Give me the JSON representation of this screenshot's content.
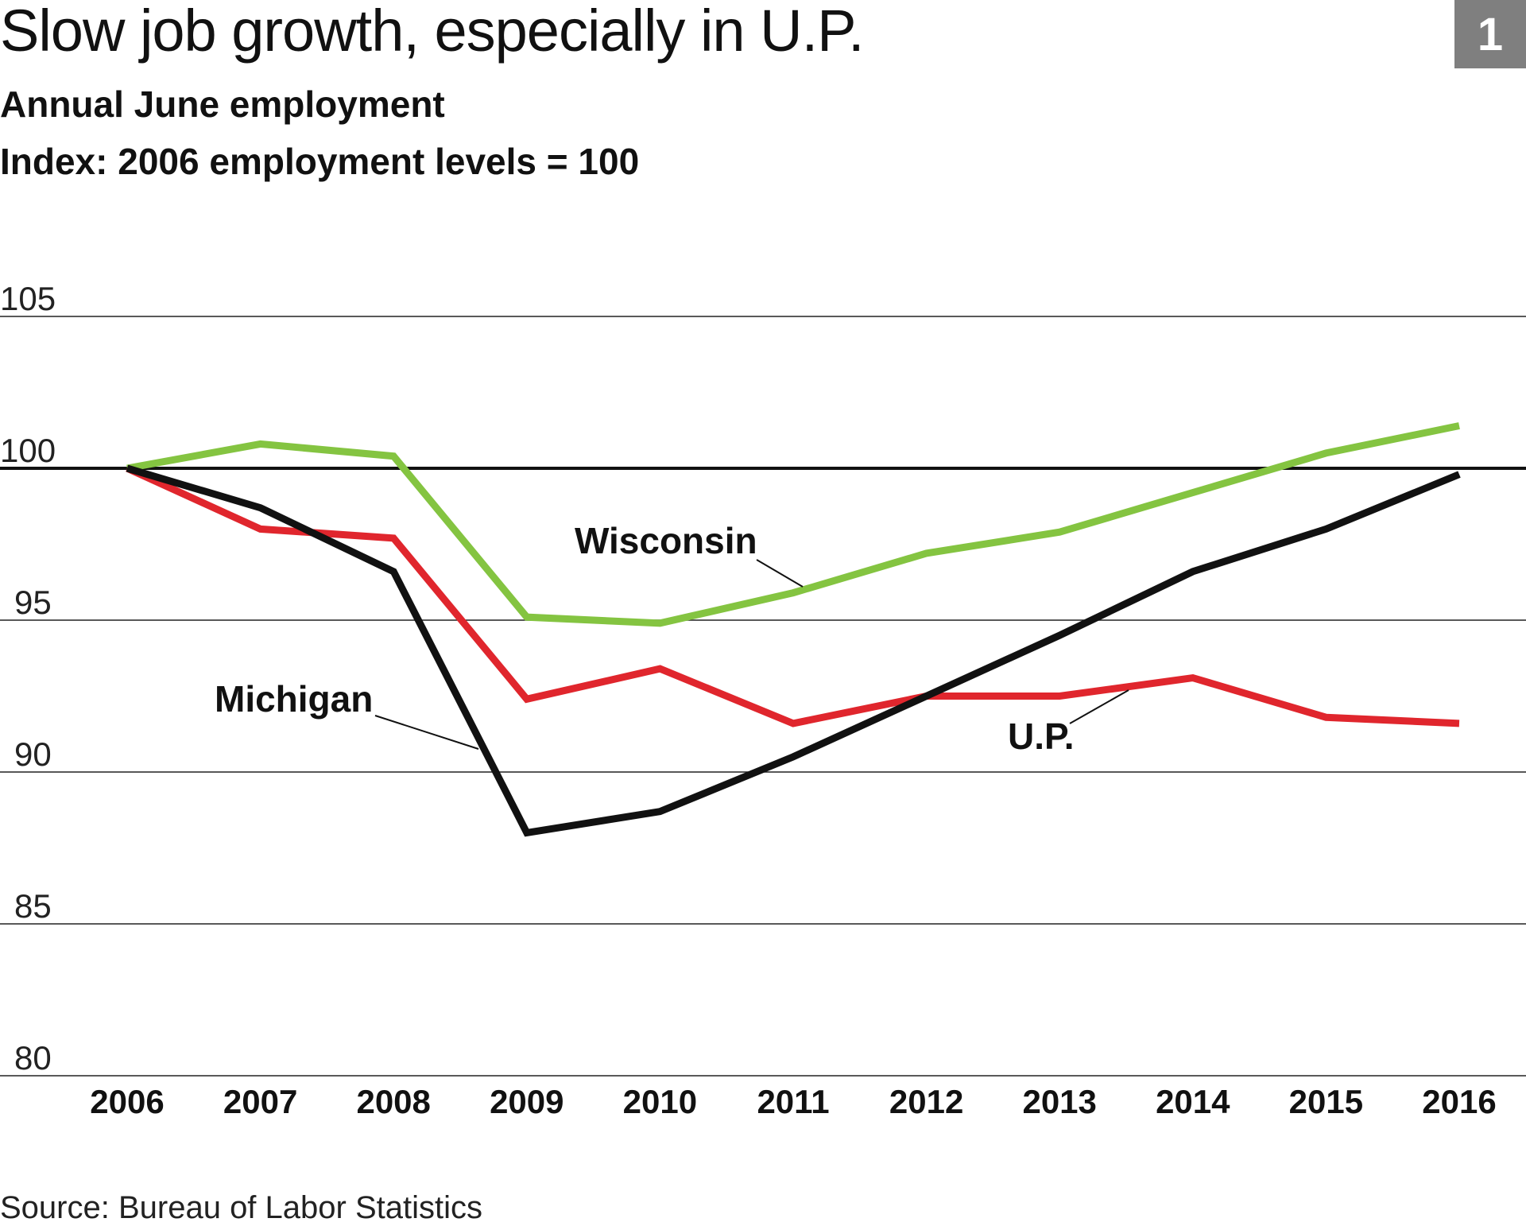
{
  "header": {
    "title": "Slow job growth, especially in U.P.",
    "subtitle_1": "Annual June employment",
    "subtitle_2": "Index: 2006 employment levels = 100",
    "badge": "1"
  },
  "footer": {
    "source": "Source: Bureau of Labor Statistics"
  },
  "chart_data": {
    "type": "line",
    "title": "Slow job growth, especially in U.P.",
    "subtitle": "Annual June employment; Index: 2006 employment levels = 100",
    "xlabel": "",
    "ylabel": "",
    "x": [
      "2006",
      "2007",
      "2008",
      "2009",
      "2010",
      "2011",
      "2012",
      "2013",
      "2014",
      "2015",
      "2016"
    ],
    "ylim": [
      80,
      105
    ],
    "yticks": [
      80,
      85,
      90,
      95,
      100,
      105
    ],
    "reference_line": 100,
    "grid": "horizontal",
    "series": [
      {
        "name": "Wisconsin",
        "color": "#84c441",
        "values": [
          100.0,
          100.8,
          100.4,
          95.1,
          94.9,
          95.9,
          97.2,
          97.9,
          99.2,
          100.5,
          101.4
        ]
      },
      {
        "name": "Michigan",
        "color": "#111111",
        "values": [
          100.0,
          98.7,
          96.6,
          88.0,
          88.7,
          90.5,
          92.5,
          94.5,
          96.6,
          98.0,
          99.8
        ]
      },
      {
        "name": "U.P.",
        "color": "#e0262d",
        "values": [
          100.0,
          98.0,
          97.7,
          92.4,
          93.4,
          91.6,
          92.5,
          92.5,
          93.1,
          91.8,
          91.6
        ]
      }
    ]
  }
}
